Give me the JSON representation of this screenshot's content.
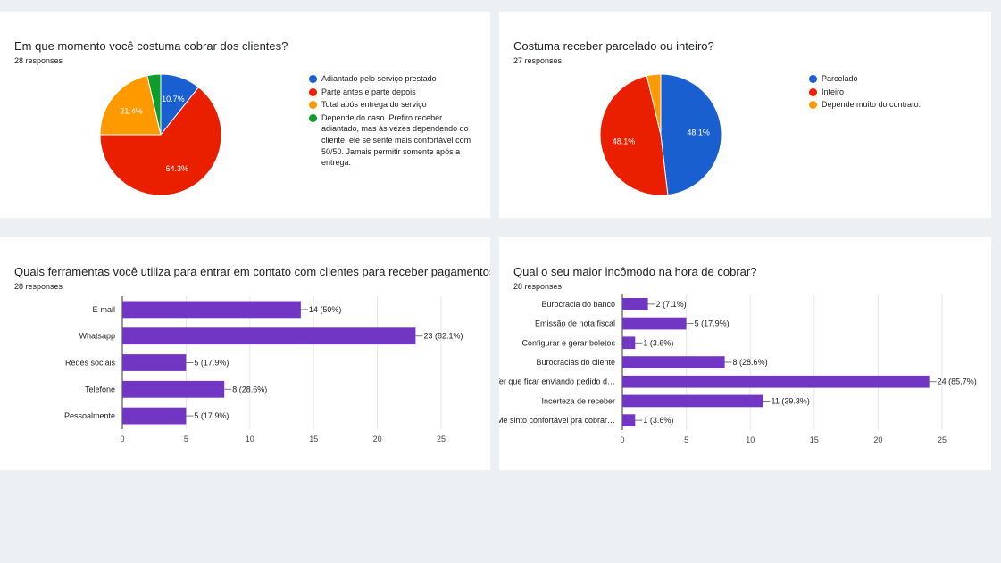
{
  "cards": [
    {
      "title": "Em que momento você costuma cobrar dos clientes?",
      "responses": "28 responses"
    },
    {
      "title": "Costuma receber parcelado ou inteiro?",
      "responses": "27 responses"
    },
    {
      "title": "Quais ferramentas você utiliza para entrar em contato com clientes para receber pagamentos?",
      "responses": "28 responses"
    },
    {
      "title": "Qual o seu maior incômodo na hora de cobrar?",
      "responses": "28 responses"
    }
  ],
  "chart_data": [
    {
      "type": "pie",
      "title": "Em que momento você costuma cobrar dos clientes?",
      "categories": [
        "Adiantado pelo serviço prestado",
        "Parte antes e parte depois",
        "Total após entrega do serviço",
        "Depende do caso. Prefiro receber adiantado, mas às vezes dependendo do cliente, ele se sente mais confortável com 50/50. Jamais permitir somente após a entrega."
      ],
      "values": [
        3,
        18,
        6,
        1
      ],
      "percent_labels": [
        "10.7%",
        "64.3%",
        "21.4%",
        ""
      ],
      "colors": [
        "#1a5fd0",
        "#ea1f00",
        "#ff9900",
        "#0f9d2a"
      ],
      "legend": "right"
    },
    {
      "type": "pie",
      "title": "Costuma receber parcelado ou inteiro?",
      "categories": [
        "Parcelado",
        "Inteiro",
        "Depende muito do contrato."
      ],
      "values": [
        13,
        13,
        1
      ],
      "percent_labels": [
        "48.1%",
        "48.1%",
        ""
      ],
      "colors": [
        "#1a5fd0",
        "#ea1f00",
        "#ff9900"
      ],
      "legend": "right"
    },
    {
      "type": "bar",
      "orientation": "horizontal",
      "title": "Quais ferramentas você utiliza para entrar em contato com clientes para receber pagamentos?",
      "categories": [
        "E-mail",
        "Whatsapp",
        "Redes sociais",
        "Telefone",
        "Pessoalmente"
      ],
      "values": [
        14,
        23,
        5,
        8,
        5
      ],
      "value_labels": [
        "14 (50%)",
        "23 (82.1%)",
        "5 (17.9%)",
        "8 (28.6%)",
        "5 (17.9%)"
      ],
      "ticks": [
        "0",
        "5",
        "10",
        "15",
        "20",
        "25"
      ],
      "xlim": [
        0,
        25
      ],
      "color": "#7236c4",
      "grid": true
    },
    {
      "type": "bar",
      "orientation": "horizontal",
      "title": "Qual o seu maior incômodo na hora de cobrar?",
      "categories": [
        "Burocracia do banco",
        "Emissão de nota fiscal",
        "Configurar e gerar boletos",
        "Burocracias do cliente",
        "Ter que ficar enviando pedido d…",
        "Incerteza de receber",
        "Me sinto confortável pra cobrar…"
      ],
      "values": [
        2,
        5,
        1,
        8,
        24,
        11,
        1
      ],
      "value_labels": [
        "2 (7.1%)",
        "5 (17.9%)",
        "1 (3.6%)",
        "8 (28.6%)",
        "24 (85.7%)",
        "11 (39.3%)",
        "1 (3.6%)"
      ],
      "ticks": [
        "0",
        "5",
        "10",
        "15",
        "20",
        "25"
      ],
      "xlim": [
        0,
        25
      ],
      "color": "#7236c4",
      "grid": true
    }
  ]
}
